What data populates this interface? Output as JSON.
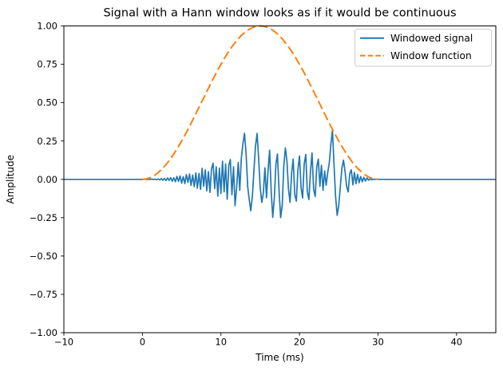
{
  "chart_data": {
    "type": "line",
    "title": "Signal with a Hann window looks as if it would be continuous",
    "xlabel": "Time (ms)",
    "ylabel": "Amplitude",
    "xlim": [
      -10,
      45
    ],
    "ylim": [
      -1.0,
      1.0
    ],
    "grid": false,
    "legend_position": "upper right",
    "xticks": [
      -10,
      0,
      10,
      20,
      30,
      40
    ],
    "xtick_labels": [
      "−10",
      "0",
      "10",
      "20",
      "30",
      "40"
    ],
    "yticks": [
      -1.0,
      -0.75,
      -0.5,
      -0.25,
      0.0,
      0.25,
      0.5,
      0.75,
      1.0
    ],
    "ytick_labels": [
      "−1.00",
      "−0.75",
      "−0.50",
      "−0.25",
      "0.00",
      "0.25",
      "0.50",
      "0.75",
      "1.00"
    ],
    "axis_color": "#000000",
    "background_color": "#ffffff",
    "series": [
      {
        "name": "Windowed signal",
        "color": "#1f77b4",
        "line_style": "solid",
        "x": [
          -10,
          0,
          0.2,
          0.4,
          0.6,
          0.8,
          1,
          1.2,
          1.4,
          1.6,
          1.8,
          2,
          2.2,
          2.4,
          2.6,
          2.8,
          3,
          3.2,
          3.4,
          3.6,
          3.8,
          4,
          4.2,
          4.4,
          4.6,
          4.8,
          5,
          5.2,
          5.4,
          5.6,
          5.8,
          6,
          6.2,
          6.4,
          6.6,
          6.8,
          7,
          7.2,
          7.4,
          7.6,
          7.8,
          8,
          8.2,
          8.4,
          8.6,
          8.8,
          9,
          9.2,
          9.4,
          9.6,
          9.8,
          10,
          10.2,
          10.4,
          10.6,
          10.8,
          11,
          11.2,
          11.4,
          11.6,
          11.8,
          12,
          12.2,
          12.4,
          12.6,
          12.8,
          13,
          13.2,
          13.4,
          13.6,
          13.8,
          14,
          14.2,
          14.4,
          14.6,
          14.8,
          15,
          15.2,
          15.4,
          15.6,
          15.8,
          16,
          16.2,
          16.4,
          16.6,
          16.8,
          17,
          17.2,
          17.4,
          17.6,
          17.8,
          18,
          18.2,
          18.4,
          18.6,
          18.8,
          19,
          19.2,
          19.4,
          19.6,
          19.8,
          20,
          20.2,
          20.4,
          20.6,
          20.8,
          21,
          21.2,
          21.4,
          21.6,
          21.8,
          22,
          22.2,
          22.4,
          22.6,
          22.8,
          23,
          23.2,
          23.4,
          23.6,
          23.8,
          24,
          24.2,
          24.4,
          24.6,
          24.8,
          25,
          25.2,
          25.4,
          25.6,
          25.8,
          26,
          26.2,
          26.4,
          26.6,
          26.8,
          27,
          27.2,
          27.4,
          27.6,
          27.8,
          28,
          28.2,
          28.4,
          28.6,
          28.8,
          29,
          29.2,
          29.4,
          29.6,
          29.8,
          30,
          45
        ],
        "y": [
          0,
          0,
          0,
          0.001,
          -0.001,
          0.001,
          -0.001,
          0.002,
          -0.002,
          0.002,
          -0.003,
          0.003,
          -0.004,
          0.005,
          -0.006,
          0.005,
          -0.008,
          0.009,
          -0.007,
          0.011,
          -0.013,
          0.01,
          -0.016,
          0.019,
          -0.014,
          0.022,
          -0.025,
          0.017,
          -0.028,
          0.031,
          -0.02,
          0.035,
          -0.04,
          0.028,
          -0.048,
          0.042,
          -0.058,
          0.038,
          -0.066,
          0.072,
          -0.045,
          0.062,
          -0.075,
          0.05,
          -0.085,
          0.068,
          0.105,
          -0.06,
          0.082,
          -0.11,
          0.073,
          -0.092,
          0.118,
          -0.082,
          0.1,
          -0.13,
          0.092,
          0.128,
          -0.1,
          0.082,
          -0.172,
          -0.055,
          0.11,
          -0.072,
          0.14,
          0.235,
          0.3,
          0.17,
          -0.045,
          -0.13,
          -0.205,
          -0.11,
          0.055,
          0.215,
          0.3,
          0.14,
          -0.055,
          -0.15,
          -0.092,
          0.075,
          -0.12,
          0.055,
          0.19,
          -0.082,
          -0.248,
          -0.12,
          0.1,
          0.165,
          -0.072,
          -0.25,
          -0.17,
          0.082,
          0.205,
          0.12,
          -0.065,
          -0.15,
          0.045,
          0.132,
          -0.1,
          -0.142,
          0.062,
          0.152,
          -0.055,
          -0.122,
          0.1,
          0.162,
          -0.082,
          -0.132,
          0.055,
          0.172,
          -0.065,
          -0.112,
          0.082,
          0.132,
          -0.045,
          0.092,
          -0.072,
          0.055,
          -0.038,
          0.045,
          0.11,
          0.23,
          0.32,
          0.09,
          -0.11,
          -0.235,
          -0.17,
          -0.052,
          0.072,
          0.125,
          0.055,
          -0.045,
          -0.082,
          0.036,
          0.062,
          -0.036,
          0.045,
          -0.028,
          0.032,
          -0.022,
          0.018,
          -0.016,
          0.013,
          -0.011,
          0.009,
          -0.006,
          0.004,
          -0.003,
          0.002,
          -0.001,
          0.001,
          0,
          0
        ]
      },
      {
        "name": "Window function",
        "color": "#ff7f0e",
        "line_style": "dashed",
        "x": [
          0,
          0.5,
          1,
          1.5,
          2,
          2.5,
          3,
          3.5,
          4,
          4.5,
          5,
          5.5,
          6,
          6.5,
          7,
          7.5,
          8,
          8.5,
          9,
          9.5,
          10,
          10.5,
          11,
          11.5,
          12,
          12.5,
          13,
          13.5,
          14,
          14.5,
          15,
          15.5,
          16,
          16.5,
          17,
          17.5,
          18,
          18.5,
          19,
          19.5,
          20,
          20.5,
          21,
          21.5,
          22,
          22.5,
          23,
          23.5,
          24,
          24.5,
          25,
          25.5,
          26,
          26.5,
          27,
          27.5,
          28,
          28.5,
          29,
          29.5,
          30
        ],
        "y": [
          0,
          0.0027,
          0.0109,
          0.0245,
          0.0432,
          0.067,
          0.0955,
          0.1284,
          0.1654,
          0.2061,
          0.25,
          0.2966,
          0.3455,
          0.396,
          0.4477,
          0.5,
          0.5523,
          0.604,
          0.6545,
          0.7034,
          0.75,
          0.7939,
          0.8346,
          0.8716,
          0.9045,
          0.933,
          0.9568,
          0.9755,
          0.9891,
          0.9973,
          1,
          0.9973,
          0.9891,
          0.9755,
          0.9568,
          0.933,
          0.9045,
          0.8716,
          0.8346,
          0.7939,
          0.75,
          0.7034,
          0.6545,
          0.604,
          0.5523,
          0.5,
          0.4477,
          0.396,
          0.3455,
          0.2966,
          0.25,
          0.2061,
          0.1654,
          0.1284,
          0.0955,
          0.067,
          0.0432,
          0.0245,
          0.0109,
          0.0027,
          0
        ]
      }
    ],
    "legend": {
      "border_color": "#cccccc",
      "background_color": "#ffffff"
    }
  }
}
